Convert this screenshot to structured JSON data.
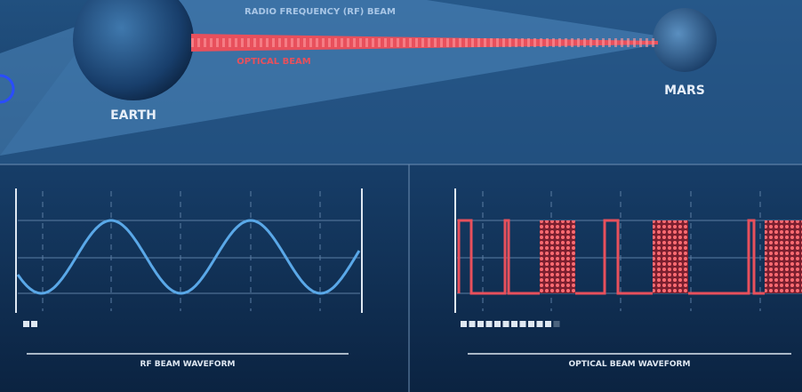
{
  "header": {
    "rf_beam": "RADIO FREQUENCY (RF) BEAM",
    "optical_beam": "OPTICAL BEAM"
  },
  "planets": {
    "earth": "EARTH",
    "mars": "MARS"
  },
  "panels": {
    "rf": "RF BEAM WAVEFORM",
    "optical": "OPTICAL BEAM WAVEFORM"
  }
}
